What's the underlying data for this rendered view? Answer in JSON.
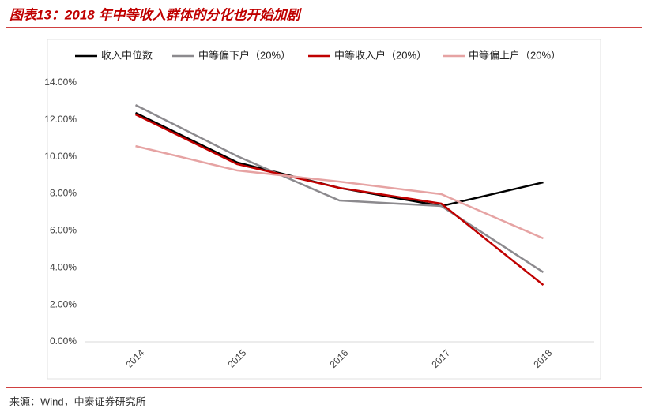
{
  "chart_data": {
    "type": "line",
    "title": "图表13：2018 年中等收入群体的分化也开始加剧",
    "source": "来源：Wind，中泰证券研究所",
    "categories": [
      "2014",
      "2015",
      "2016",
      "2017",
      "2018"
    ],
    "series": [
      {
        "name": "收入中位数",
        "color": "#000000",
        "values": [
          12.38,
          9.69,
          8.32,
          7.34,
          8.62
        ]
      },
      {
        "name": "中等偏下户（20%）",
        "color": "#8c8a8e",
        "values": [
          12.8,
          10.03,
          7.64,
          7.34,
          3.76
        ]
      },
      {
        "name": "中等收入户（20%）",
        "color": "#c00000",
        "values": [
          12.29,
          9.6,
          8.32,
          7.47,
          3.07
        ]
      },
      {
        "name": "中等偏上户（20%）",
        "color": "#e6a3a3",
        "values": [
          10.58,
          9.26,
          8.66,
          7.98,
          5.59
        ]
      }
    ],
    "ylim": [
      0,
      14
    ],
    "yticks": [
      {
        "value": 0,
        "label": "0.00%"
      },
      {
        "value": 2,
        "label": "2.00%"
      },
      {
        "value": 4,
        "label": "4.00%"
      },
      {
        "value": 6,
        "label": "6.00%"
      },
      {
        "value": 8,
        "label": "8.00%"
      },
      {
        "value": 10,
        "label": "10.00%"
      },
      {
        "value": 12,
        "label": "12.00%"
      },
      {
        "value": 14,
        "label": "14.00%"
      }
    ],
    "grid": false
  }
}
